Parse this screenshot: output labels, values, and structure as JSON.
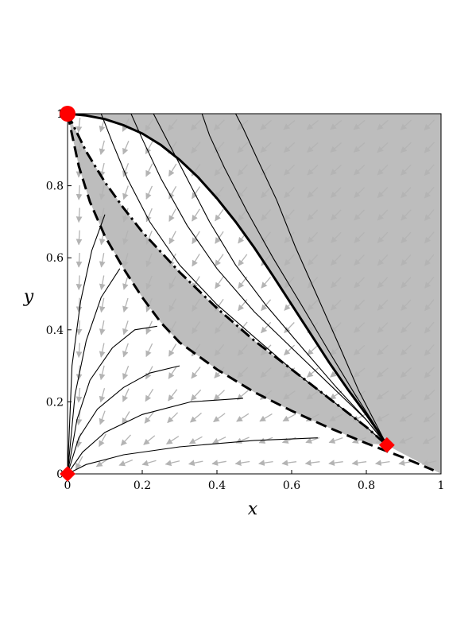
{
  "chart_data": {
    "type": "phase-portrait",
    "xlabel": "x",
    "ylabel": "y",
    "xlim": [
      0,
      1
    ],
    "ylim": [
      0,
      1
    ],
    "x_ticks": [
      {
        "value": 0,
        "label": "0"
      },
      {
        "value": 0.2,
        "label": "0.2"
      },
      {
        "value": 0.4,
        "label": "0.4"
      },
      {
        "value": 0.6,
        "label": "0.6"
      },
      {
        "value": 0.8,
        "label": "0.8"
      },
      {
        "value": 1,
        "label": "1"
      }
    ],
    "y_ticks": [
      {
        "value": 0,
        "label": "0"
      },
      {
        "value": 0.2,
        "label": "0.2"
      },
      {
        "value": 0.4,
        "label": "0.4"
      },
      {
        "value": 0.6,
        "label": "0.6"
      },
      {
        "value": 0.8,
        "label": "0.8"
      },
      {
        "value": 1,
        "label": "1"
      }
    ],
    "colors": {
      "region_fill": "#bdbdbd",
      "separatrix": "#000000",
      "trajectory": "#000000",
      "field_arrow": "#b4b4b4",
      "equilibrium": "#ff0000"
    },
    "equilibria": [
      {
        "x": 0,
        "y": 1,
        "marker": "circle"
      },
      {
        "x": 0,
        "y": 0,
        "marker": "diamond"
      },
      {
        "x": 0.855,
        "y": 0.08,
        "marker": "diamond"
      }
    ],
    "upper_separatrix": {
      "style": "solid",
      "points": [
        [
          0,
          1
        ],
        [
          0.05,
          0.995
        ],
        [
          0.1,
          0.985
        ],
        [
          0.15,
          0.968
        ],
        [
          0.2,
          0.945
        ],
        [
          0.25,
          0.913
        ],
        [
          0.3,
          0.872
        ],
        [
          0.35,
          0.823
        ],
        [
          0.4,
          0.765
        ],
        [
          0.45,
          0.7
        ],
        [
          0.5,
          0.628
        ],
        [
          0.55,
          0.55
        ],
        [
          0.6,
          0.47
        ],
        [
          0.65,
          0.39
        ],
        [
          0.7,
          0.31
        ],
        [
          0.75,
          0.235
        ],
        [
          0.8,
          0.165
        ],
        [
          0.83,
          0.12
        ],
        [
          0.855,
          0.08
        ]
      ]
    },
    "dashdot_separatrix": {
      "style": "dash-dot",
      "points": [
        [
          0,
          1
        ],
        [
          0.05,
          0.895
        ],
        [
          0.1,
          0.81
        ],
        [
          0.15,
          0.738
        ],
        [
          0.2,
          0.672
        ],
        [
          0.3,
          0.56
        ],
        [
          0.4,
          0.46
        ],
        [
          0.5,
          0.37
        ],
        [
          0.6,
          0.29
        ],
        [
          0.7,
          0.21
        ],
        [
          0.8,
          0.13
        ],
        [
          0.855,
          0.08
        ]
      ]
    },
    "dashed_separatrix": {
      "style": "dashed",
      "points": [
        [
          0,
          1
        ],
        [
          0.03,
          0.855
        ],
        [
          0.06,
          0.755
        ],
        [
          0.1,
          0.66
        ],
        [
          0.15,
          0.57
        ],
        [
          0.2,
          0.49
        ],
        [
          0.25,
          0.42
        ],
        [
          0.3,
          0.365
        ],
        [
          0.4,
          0.29
        ],
        [
          0.5,
          0.227
        ],
        [
          0.6,
          0.175
        ],
        [
          0.7,
          0.128
        ],
        [
          0.8,
          0.085
        ],
        [
          0.9,
          0.045
        ],
        [
          0.98,
          0.01
        ]
      ]
    },
    "trajectories": [
      {
        "points": [
          [
            0,
            0
          ],
          [
            0.05,
            0.026
          ],
          [
            0.15,
            0.053
          ],
          [
            0.3,
            0.075
          ],
          [
            0.5,
            0.093
          ],
          [
            0.67,
            0.1
          ]
        ]
      },
      {
        "points": [
          [
            0,
            0
          ],
          [
            0.04,
            0.06
          ],
          [
            0.1,
            0.115
          ],
          [
            0.2,
            0.165
          ],
          [
            0.33,
            0.2
          ],
          [
            0.47,
            0.21
          ]
        ]
      },
      {
        "points": [
          [
            0,
            0
          ],
          [
            0.03,
            0.1
          ],
          [
            0.08,
            0.18
          ],
          [
            0.15,
            0.24
          ],
          [
            0.22,
            0.28
          ],
          [
            0.3,
            0.3
          ]
        ]
      },
      {
        "points": [
          [
            0,
            0
          ],
          [
            0.025,
            0.15
          ],
          [
            0.06,
            0.26
          ],
          [
            0.12,
            0.35
          ],
          [
            0.18,
            0.4
          ],
          [
            0.24,
            0.41
          ]
        ]
      },
      {
        "points": [
          [
            0,
            0
          ],
          [
            0.02,
            0.22
          ],
          [
            0.05,
            0.37
          ],
          [
            0.09,
            0.49
          ],
          [
            0.14,
            0.57
          ]
        ]
      },
      {
        "points": [
          [
            0,
            0
          ],
          [
            0.012,
            0.3
          ],
          [
            0.035,
            0.48
          ],
          [
            0.065,
            0.62
          ],
          [
            0.1,
            0.72
          ]
        ]
      },
      {
        "points": [
          [
            0.09,
            1
          ],
          [
            0.12,
            0.92
          ],
          [
            0.16,
            0.82
          ],
          [
            0.22,
            0.7
          ],
          [
            0.3,
            0.58
          ],
          [
            0.4,
            0.47
          ],
          [
            0.5,
            0.38
          ],
          [
            0.6,
            0.29
          ],
          [
            0.7,
            0.21
          ],
          [
            0.8,
            0.13
          ],
          [
            0.855,
            0.08
          ]
        ]
      },
      {
        "points": [
          [
            0.17,
            1
          ],
          [
            0.2,
            0.93
          ],
          [
            0.25,
            0.82
          ],
          [
            0.32,
            0.69
          ],
          [
            0.4,
            0.57
          ],
          [
            0.5,
            0.45
          ],
          [
            0.6,
            0.35
          ],
          [
            0.7,
            0.25
          ],
          [
            0.8,
            0.15
          ],
          [
            0.855,
            0.08
          ]
        ]
      },
      {
        "points": [
          [
            0.23,
            1
          ],
          [
            0.27,
            0.92
          ],
          [
            0.32,
            0.82
          ],
          [
            0.38,
            0.7
          ],
          [
            0.45,
            0.58
          ],
          [
            0.53,
            0.47
          ],
          [
            0.62,
            0.36
          ],
          [
            0.72,
            0.24
          ],
          [
            0.8,
            0.15
          ],
          [
            0.855,
            0.08
          ]
        ]
      },
      {
        "points": [
          [
            0.36,
            1
          ],
          [
            0.38,
            0.94
          ],
          [
            0.42,
            0.85
          ],
          [
            0.48,
            0.73
          ],
          [
            0.55,
            0.6
          ],
          [
            0.62,
            0.48
          ],
          [
            0.7,
            0.34
          ],
          [
            0.77,
            0.22
          ],
          [
            0.82,
            0.14
          ],
          [
            0.855,
            0.08
          ]
        ]
      },
      {
        "points": [
          [
            0.45,
            1
          ],
          [
            0.47,
            0.96
          ],
          [
            0.51,
            0.87
          ],
          [
            0.56,
            0.76
          ],
          [
            0.61,
            0.63
          ],
          [
            0.67,
            0.49
          ],
          [
            0.73,
            0.35
          ],
          [
            0.78,
            0.23
          ],
          [
            0.82,
            0.15
          ],
          [
            0.855,
            0.08
          ]
        ]
      }
    ]
  }
}
